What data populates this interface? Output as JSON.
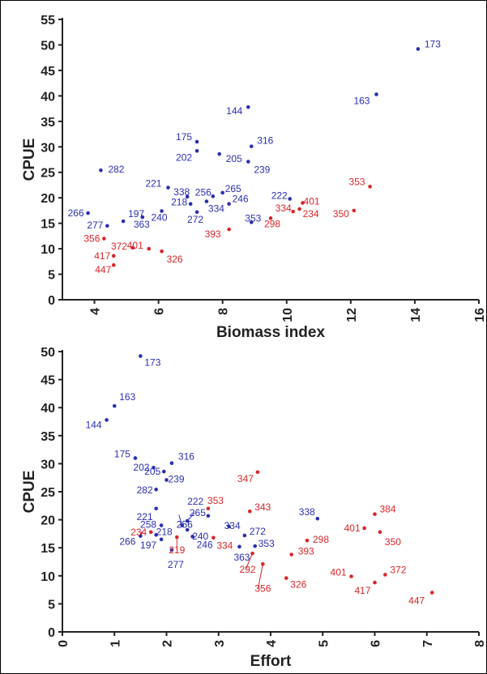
{
  "colors": {
    "blue": "#2b2fb0",
    "red": "#d8262a",
    "axis": "#222222"
  },
  "chart_data": [
    {
      "type": "scatter",
      "xlabel": "Biomass index",
      "ylabel": "CPUE",
      "xlim": [
        3,
        16
      ],
      "ylim": [
        0,
        55
      ],
      "xticks": [
        "4",
        "6",
        "8",
        "10",
        "12",
        "14",
        "16"
      ],
      "yticks": [
        "0",
        "5",
        "10",
        "15",
        "20",
        "25",
        "30",
        "35",
        "40",
        "45",
        "50",
        "55"
      ],
      "series": [
        {
          "color": "blue",
          "points": [
            {
              "label": "173",
              "x": 14.1,
              "y": 49.2
            },
            {
              "label": "163",
              "x": 12.8,
              "y": 40.3
            },
            {
              "label": "144",
              "x": 8.8,
              "y": 37.8
            },
            {
              "label": "316",
              "x": 8.9,
              "y": 30.1
            },
            {
              "label": "175",
              "x": 7.2,
              "y": 31.0
            },
            {
              "label": "202",
              "x": 7.2,
              "y": 29.2
            },
            {
              "label": "205",
              "x": 7.9,
              "y": 28.6
            },
            {
              "label": "239",
              "x": 8.8,
              "y": 27.1
            },
            {
              "label": "282",
              "x": 4.2,
              "y": 25.4
            },
            {
              "label": "221",
              "x": 6.3,
              "y": 22.0
            },
            {
              "label": "338",
              "x": 6.9,
              "y": 20.2
            },
            {
              "label": "256",
              "x": 7.7,
              "y": 20.3
            },
            {
              "label": "265",
              "x": 8.0,
              "y": 21.0
            },
            {
              "label": "222",
              "x": 10.1,
              "y": 19.8
            },
            {
              "label": "266",
              "x": 3.8,
              "y": 17.0
            },
            {
              "label": "277",
              "x": 4.4,
              "y": 14.5
            },
            {
              "label": "197",
              "x": 4.9,
              "y": 15.4
            },
            {
              "label": "363",
              "x": 5.5,
              "y": 16.2
            },
            {
              "label": "218",
              "x": 7.0,
              "y": 18.8
            },
            {
              "label": "240",
              "x": 6.1,
              "y": 17.4
            },
            {
              "label": "272",
              "x": 7.2,
              "y": 17.2
            },
            {
              "label": "334",
              "x": 7.5,
              "y": 19.3
            },
            {
              "label": "246",
              "x": 8.2,
              "y": 18.8
            },
            {
              "label": "353",
              "x": 8.9,
              "y": 15.2
            }
          ]
        },
        {
          "color": "red",
          "points": [
            {
              "label": "401",
              "x": 10.5,
              "y": 19.0
            },
            {
              "label": "353",
              "x": 12.6,
              "y": 22.2
            },
            {
              "label": "334",
              "x": 10.2,
              "y": 17.3
            },
            {
              "label": "234",
              "x": 10.4,
              "y": 17.8
            },
            {
              "label": "350",
              "x": 12.1,
              "y": 17.5
            },
            {
              "label": "298",
              "x": 9.5,
              "y": 16.0
            },
            {
              "label": "393",
              "x": 8.2,
              "y": 13.8
            },
            {
              "label": "356",
              "x": 4.3,
              "y": 12.0
            },
            {
              "label": "372",
              "x": 5.2,
              "y": 10.2
            },
            {
              "label": "401",
              "x": 5.7,
              "y": 10.0
            },
            {
              "label": "417",
              "x": 4.6,
              "y": 8.6
            },
            {
              "label": "447",
              "x": 4.6,
              "y": 6.8
            },
            {
              "label": "326",
              "x": 6.1,
              "y": 9.5
            }
          ]
        }
      ]
    },
    {
      "type": "scatter",
      "xlabel": "Effort",
      "ylabel": "CPUE",
      "xlim": [
        0,
        8
      ],
      "ylim": [
        0,
        50
      ],
      "xticks": [
        "0",
        "1",
        "2",
        "3",
        "4",
        "5",
        "6",
        "7",
        "8"
      ],
      "yticks": [
        "0",
        "5",
        "10",
        "15",
        "20",
        "25",
        "30",
        "35",
        "40",
        "45",
        "50"
      ],
      "series": [
        {
          "color": "blue",
          "points": [
            {
              "label": "173",
              "x": 1.5,
              "y": 49.2
            },
            {
              "label": "163",
              "x": 1.0,
              "y": 40.3
            },
            {
              "label": "144",
              "x": 0.85,
              "y": 37.8
            },
            {
              "label": "175",
              "x": 1.4,
              "y": 31.0
            },
            {
              "label": "202",
              "x": 1.75,
              "y": 29.3
            },
            {
              "label": "316",
              "x": 2.1,
              "y": 30.1
            },
            {
              "label": "205",
              "x": 1.95,
              "y": 28.6
            },
            {
              "label": "239",
              "x": 2.0,
              "y": 27.1
            },
            {
              "label": "282",
              "x": 1.8,
              "y": 25.4
            },
            {
              "label": "221",
              "x": 1.8,
              "y": 22.0
            },
            {
              "label": "222",
              "x": 2.4,
              "y": 19.8
            },
            {
              "label": "338",
              "x": 4.9,
              "y": 20.2
            },
            {
              "label": "258",
              "x": 1.9,
              "y": 19.0
            },
            {
              "label": "256",
              "x": 2.3,
              "y": 19.0
            },
            {
              "label": "265",
              "x": 2.8,
              "y": 20.7
            },
            {
              "label": "334",
              "x": 3.2,
              "y": 18.8
            },
            {
              "label": "218",
              "x": 1.8,
              "y": 17.3
            },
            {
              "label": "240",
              "x": 2.4,
              "y": 18.2
            },
            {
              "label": "272",
              "x": 3.5,
              "y": 17.2
            },
            {
              "label": "246",
              "x": 2.5,
              "y": 17.0
            },
            {
              "label": "266",
              "x": 1.5,
              "y": 17.1
            },
            {
              "label": "197",
              "x": 1.9,
              "y": 16.5
            },
            {
              "label": "277",
              "x": 2.1,
              "y": 14.6
            },
            {
              "label": "353",
              "x": 3.7,
              "y": 15.3
            },
            {
              "label": "363",
              "x": 3.4,
              "y": 15.2
            }
          ]
        },
        {
          "color": "red",
          "points": [
            {
              "label": "347",
              "x": 3.75,
              "y": 28.5
            },
            {
              "label": "353",
              "x": 2.8,
              "y": 22.0
            },
            {
              "label": "343",
              "x": 3.6,
              "y": 21.5
            },
            {
              "label": "384",
              "x": 6.0,
              "y": 21.0
            },
            {
              "label": "401",
              "x": 5.8,
              "y": 18.5
            },
            {
              "label": "350",
              "x": 6.1,
              "y": 17.8
            },
            {
              "label": "298",
              "x": 4.7,
              "y": 16.3
            },
            {
              "label": "234",
              "x": 1.7,
              "y": 17.8
            },
            {
              "label": "219",
              "x": 2.2,
              "y": 16.9
            },
            {
              "label": "334",
              "x": 2.9,
              "y": 16.8
            },
            {
              "label": "393",
              "x": 4.4,
              "y": 13.8
            },
            {
              "label": "292",
              "x": 3.65,
              "y": 14.0
            },
            {
              "label": "356",
              "x": 3.85,
              "y": 12.1
            },
            {
              "label": "326",
              "x": 4.3,
              "y": 9.6
            },
            {
              "label": "401",
              "x": 5.55,
              "y": 9.9
            },
            {
              "label": "372",
              "x": 6.2,
              "y": 10.2
            },
            {
              "label": "417",
              "x": 6.0,
              "y": 8.8
            },
            {
              "label": "447",
              "x": 7.1,
              "y": 7.0
            }
          ]
        }
      ]
    }
  ]
}
